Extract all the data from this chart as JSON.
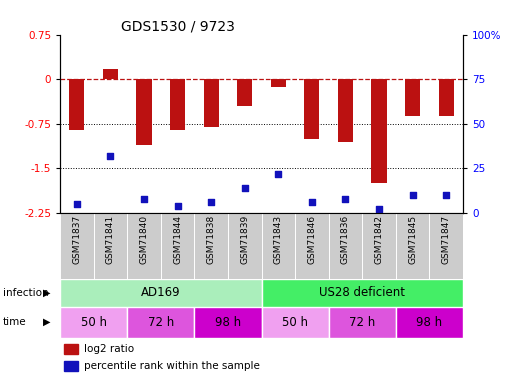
{
  "title": "GDS1530 / 9723",
  "samples": [
    "GSM71837",
    "GSM71841",
    "GSM71840",
    "GSM71844",
    "GSM71838",
    "GSM71839",
    "GSM71843",
    "GSM71846",
    "GSM71836",
    "GSM71842",
    "GSM71845",
    "GSM71847"
  ],
  "log2_ratio": [
    -0.85,
    0.18,
    -1.1,
    -0.85,
    -0.8,
    -0.45,
    -0.12,
    -1.0,
    -1.05,
    -1.75,
    -0.62,
    -0.62
  ],
  "percentile_rank": [
    5,
    32,
    8,
    4,
    6,
    14,
    22,
    6,
    8,
    2,
    10,
    10
  ],
  "ylim_left": [
    -2.25,
    0.75
  ],
  "ylim_right": [
    0,
    100
  ],
  "yticks_left": [
    0.75,
    0,
    -0.75,
    -1.5,
    -2.25
  ],
  "yticks_right": [
    100,
    75,
    50,
    25,
    0
  ],
  "hline_dotted": [
    -0.75,
    -1.5
  ],
  "bar_color": "#bb1111",
  "dot_color": "#1111bb",
  "infection_labels": [
    "AD169",
    "US28 deficient"
  ],
  "infection_colors": [
    "#aaeebb",
    "#44ee66"
  ],
  "infection_ranges": [
    [
      0,
      6
    ],
    [
      6,
      12
    ]
  ],
  "time_group_def": [
    [
      0,
      2,
      "50 h",
      "#f0a0f0"
    ],
    [
      2,
      4,
      "72 h",
      "#dd55dd"
    ],
    [
      4,
      6,
      "98 h",
      "#cc00cc"
    ],
    [
      6,
      8,
      "50 h",
      "#f0a0f0"
    ],
    [
      8,
      10,
      "72 h",
      "#dd55dd"
    ],
    [
      10,
      12,
      "98 h",
      "#cc00cc"
    ]
  ],
  "bar_width": 0.45
}
